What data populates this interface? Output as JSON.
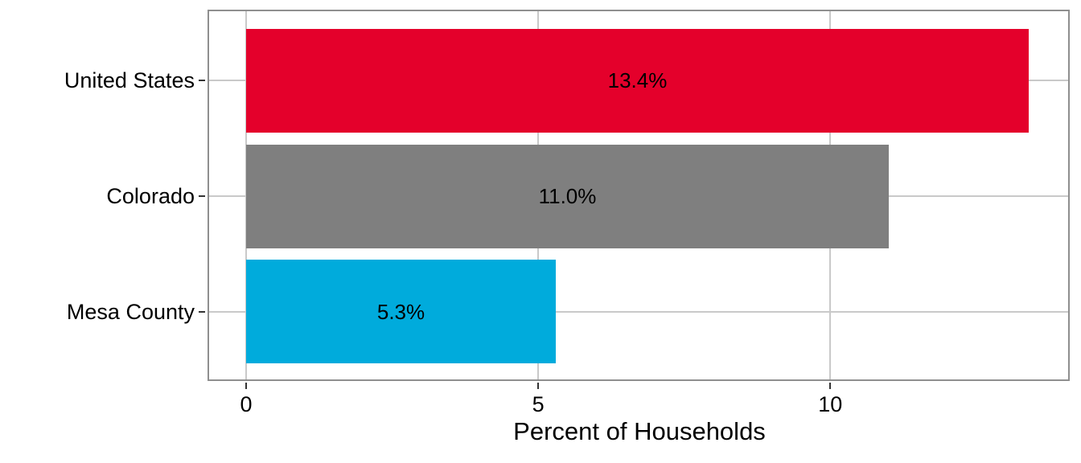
{
  "chart_data": {
    "type": "bar",
    "orientation": "horizontal",
    "title": "",
    "xlabel": "Percent of Households",
    "ylabel": "",
    "categories": [
      "United States",
      "Colorado",
      "Mesa County"
    ],
    "values": [
      13.4,
      11.0,
      5.3
    ],
    "bar_labels": [
      "13.4%",
      "11.0%",
      "5.3%"
    ],
    "bar_colors": [
      "#e4002b",
      "#7f7f7f",
      "#00abdc"
    ],
    "xlim": [
      0,
      14.1
    ],
    "x_ticks": [
      0,
      5,
      10
    ],
    "x_tick_labels": [
      "0",
      "5",
      "10"
    ],
    "grid": "on",
    "legend": "none",
    "colors": {
      "gridline": "#c9c9c9",
      "panel_border": "#8f8f8f",
      "tick_mark": "#333333",
      "text": "#000000",
      "background": "#ffffff"
    }
  }
}
